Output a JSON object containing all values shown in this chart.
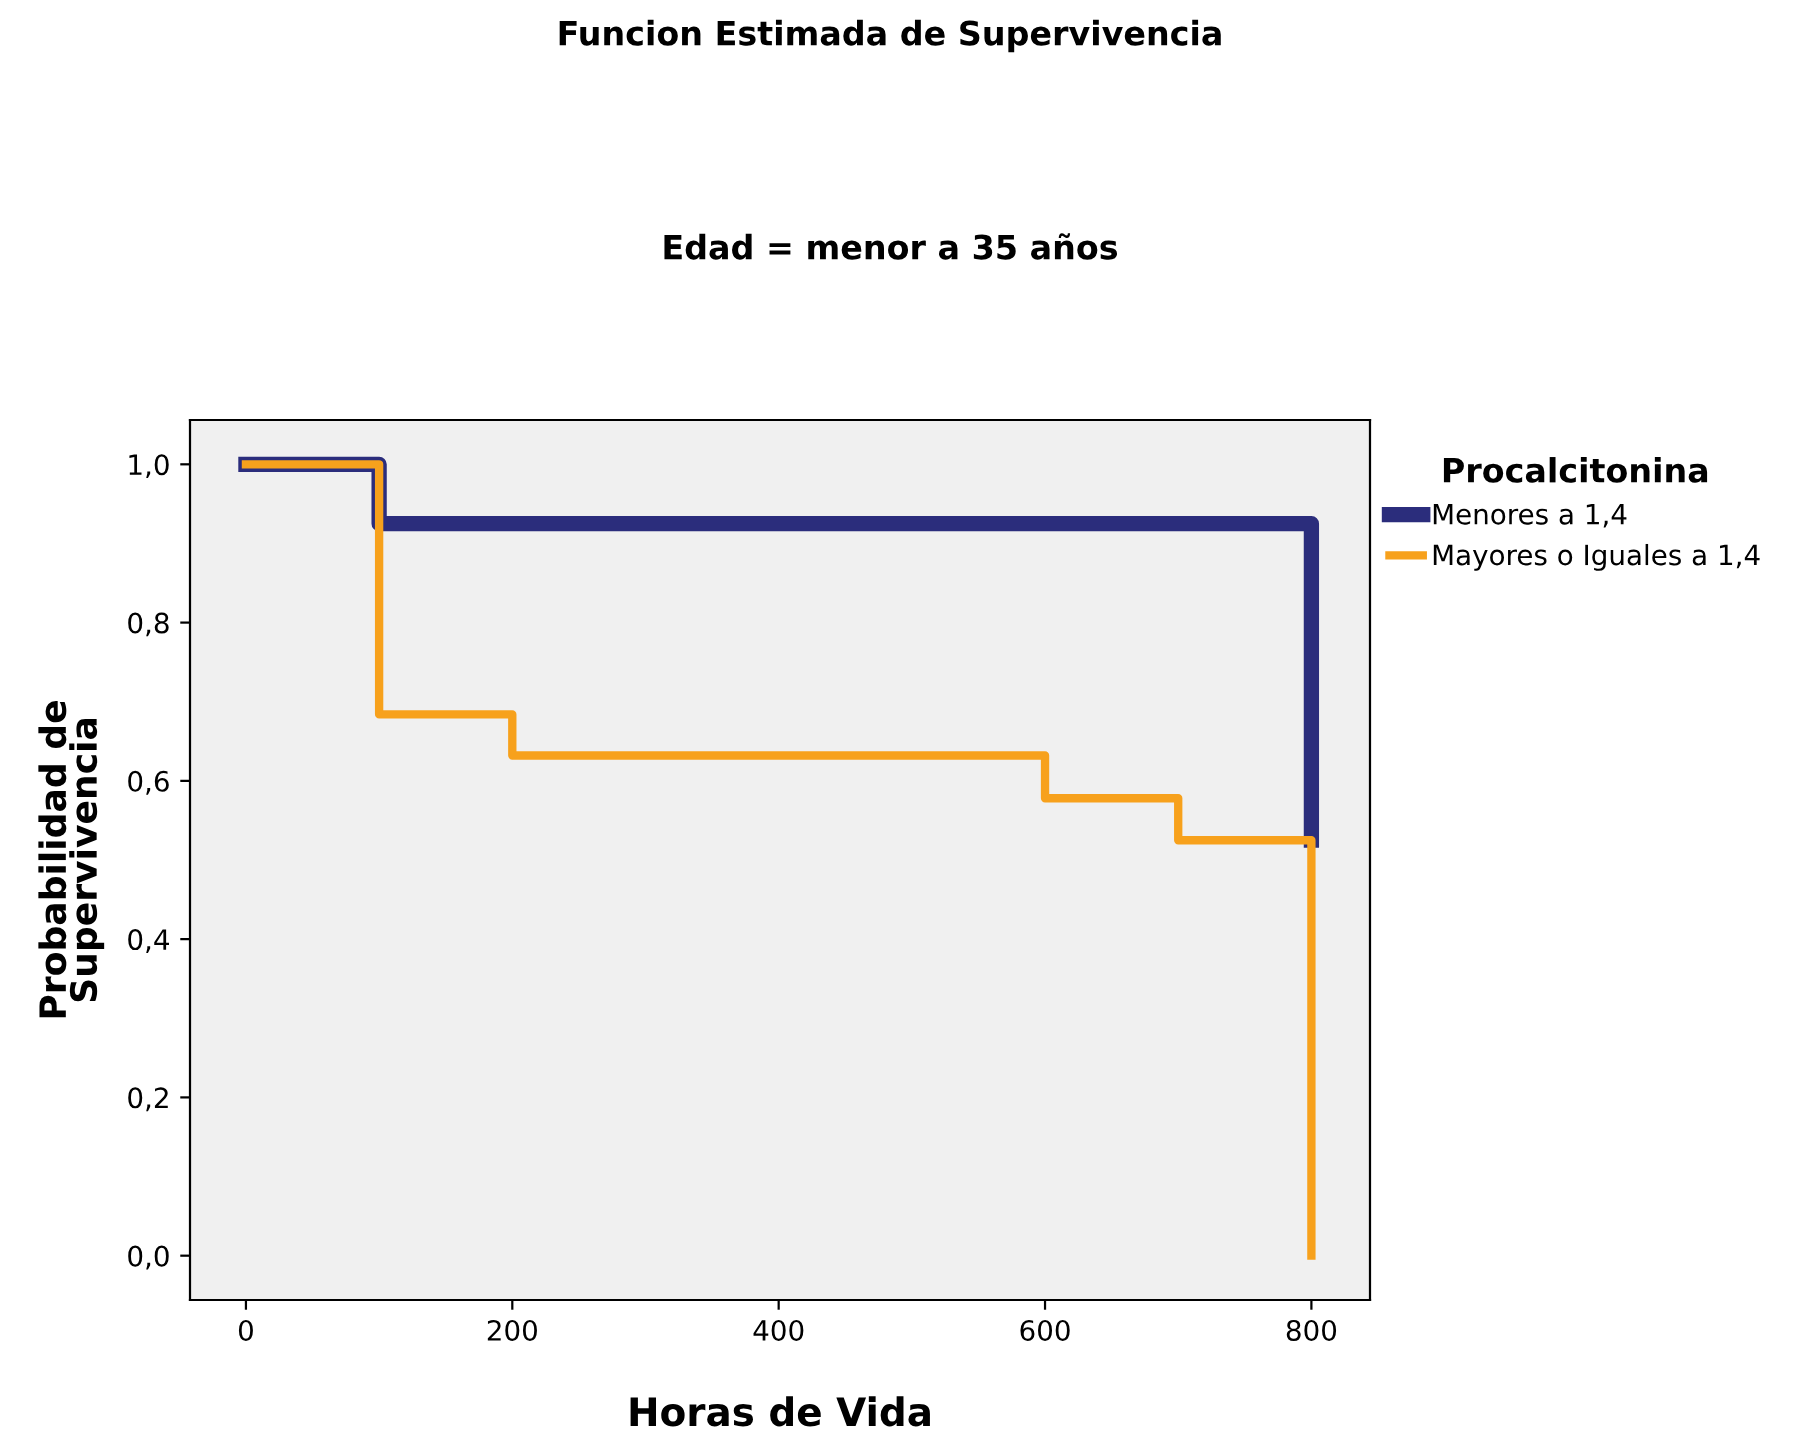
{
  "chart_data": {
    "type": "step",
    "title": "Funcion Estimada de Supervivencia",
    "subtitle": "Edad = menor a 35 años",
    "xlabel": "Horas de Vida",
    "ylabel": "Probabilidad de\nSupervivencia",
    "legend_title": "Procalcitonina",
    "legend": "right",
    "series": [
      {
        "name": "Menores a 1,4",
        "color": "#2b2d7c",
        "x": [
          0,
          100,
          800,
          800
        ],
        "values": [
          1.0,
          0.925,
          0.925,
          0.525
        ]
      },
      {
        "name": "Mayores o Iguales a 1,4",
        "color": "#f7a11c",
        "x": [
          0,
          100,
          200,
          600,
          700,
          800,
          800
        ],
        "values": [
          1.0,
          0.684,
          0.632,
          0.578,
          0.525,
          0.525,
          0.0
        ]
      }
    ],
    "xlim": [
      -42,
      844
    ],
    "xticks": [
      0,
      200,
      400,
      600,
      800
    ],
    "ylim": [
      -0.056,
      1.056
    ],
    "yticks": [
      {
        "value": 0,
        "label": "0,0"
      },
      {
        "value": 0.2,
        "label": "0,2"
      },
      {
        "value": 0.4,
        "label": "0,4"
      },
      {
        "value": 0.6,
        "label": "0,6"
      },
      {
        "value": 0.8,
        "label": "0,8"
      },
      {
        "value": 1,
        "label": "1,0"
      }
    ],
    "grid": false
  }
}
